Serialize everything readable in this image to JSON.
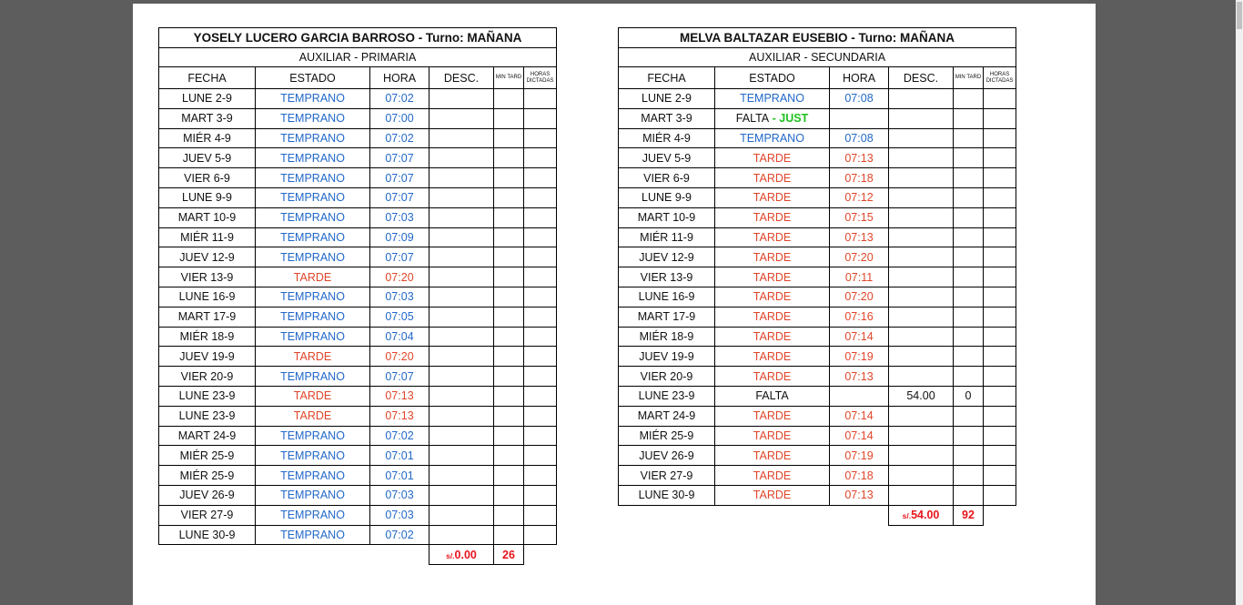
{
  "left": {
    "title": "YOSELY LUCERO GARCIA  BARROSO - Turno: MAÑANA",
    "subtitle": "AUXILIAR - PRIMARIA",
    "headers": {
      "fecha": "FECHA",
      "estado": "ESTADO",
      "hora": "HORA",
      "desc": "DESC.",
      "min": "MIN TARD",
      "horas": "HORAS DICTADAS"
    },
    "rows": [
      {
        "fecha": "LUNE 2-9",
        "estado": "TEMPRANO",
        "hora": "07:02",
        "desc": "",
        "min": ""
      },
      {
        "fecha": "MART 3-9",
        "estado": "TEMPRANO",
        "hora": "07:00",
        "desc": "",
        "min": ""
      },
      {
        "fecha": "MIÉR 4-9",
        "estado": "TEMPRANO",
        "hora": "07:02",
        "desc": "",
        "min": ""
      },
      {
        "fecha": "JUEV 5-9",
        "estado": "TEMPRANO",
        "hora": "07:07",
        "desc": "",
        "min": ""
      },
      {
        "fecha": "VIER 6-9",
        "estado": "TEMPRANO",
        "hora": "07:07",
        "desc": "",
        "min": ""
      },
      {
        "fecha": "LUNE 9-9",
        "estado": "TEMPRANO",
        "hora": "07:07",
        "desc": "",
        "min": ""
      },
      {
        "fecha": "MART 10-9",
        "estado": "TEMPRANO",
        "hora": "07:03",
        "desc": "",
        "min": ""
      },
      {
        "fecha": "MIÉR 11-9",
        "estado": "TEMPRANO",
        "hora": "07:09",
        "desc": "",
        "min": ""
      },
      {
        "fecha": "JUEV 12-9",
        "estado": "TEMPRANO",
        "hora": "07:07",
        "desc": "",
        "min": ""
      },
      {
        "fecha": "VIER 13-9",
        "estado": "TARDE",
        "hora": "07:20",
        "desc": "",
        "min": ""
      },
      {
        "fecha": "LUNE 16-9",
        "estado": "TEMPRANO",
        "hora": "07:03",
        "desc": "",
        "min": ""
      },
      {
        "fecha": "MART 17-9",
        "estado": "TEMPRANO",
        "hora": "07:05",
        "desc": "",
        "min": ""
      },
      {
        "fecha": "MIÉR 18-9",
        "estado": "TEMPRANO",
        "hora": "07:04",
        "desc": "",
        "min": ""
      },
      {
        "fecha": "JUEV 19-9",
        "estado": "TARDE",
        "hora": "07:20",
        "desc": "",
        "min": ""
      },
      {
        "fecha": "VIER 20-9",
        "estado": "TEMPRANO",
        "hora": "07:07",
        "desc": "",
        "min": ""
      },
      {
        "fecha": "LUNE 23-9",
        "estado": "TARDE",
        "hora": "07:13",
        "desc": "",
        "min": ""
      },
      {
        "fecha": "LUNE 23-9",
        "estado": "TARDE",
        "hora": "07:13",
        "desc": "",
        "min": ""
      },
      {
        "fecha": "MART 24-9",
        "estado": "TEMPRANO",
        "hora": "07:02",
        "desc": "",
        "min": ""
      },
      {
        "fecha": "MIÉR 25-9",
        "estado": "TEMPRANO",
        "hora": "07:01",
        "desc": "",
        "min": ""
      },
      {
        "fecha": "MIÉR 25-9",
        "estado": "TEMPRANO",
        "hora": "07:01",
        "desc": "",
        "min": ""
      },
      {
        "fecha": "JUEV 26-9",
        "estado": "TEMPRANO",
        "hora": "07:03",
        "desc": "",
        "min": ""
      },
      {
        "fecha": "VIER 27-9",
        "estado": "TEMPRANO",
        "hora": "07:03",
        "desc": "",
        "min": ""
      },
      {
        "fecha": "LUNE 30-9",
        "estado": "TEMPRANO",
        "hora": "07:02",
        "desc": "",
        "min": ""
      }
    ],
    "total": {
      "currency": "s/.",
      "amount": "0.00",
      "minutes": "26"
    }
  },
  "right": {
    "title": "MELVA BALTAZAR EUSEBIO - Turno: MAÑANA",
    "subtitle": "AUXILIAR - SECUNDARIA",
    "headers": {
      "fecha": "FECHA",
      "estado": "ESTADO",
      "hora": "HORA",
      "desc": "DESC.",
      "min": "MIN TARD",
      "horas": "HORAS DICTADAS"
    },
    "rows": [
      {
        "fecha": "LUNE 2-9",
        "estado": "TEMPRANO",
        "hora": "07:08",
        "desc": "",
        "min": ""
      },
      {
        "fecha": "MART 3-9",
        "estado": "FALTA",
        "extra": " - JUST",
        "hora": "",
        "desc": "",
        "min": ""
      },
      {
        "fecha": "MIÉR 4-9",
        "estado": "TEMPRANO",
        "hora": "07:08",
        "desc": "",
        "min": ""
      },
      {
        "fecha": "JUEV 5-9",
        "estado": "TARDE",
        "hora": "07:13",
        "desc": "",
        "min": ""
      },
      {
        "fecha": "VIER 6-9",
        "estado": "TARDE",
        "hora": "07:18",
        "desc": "",
        "min": ""
      },
      {
        "fecha": "LUNE 9-9",
        "estado": "TARDE",
        "hora": "07:12",
        "desc": "",
        "min": ""
      },
      {
        "fecha": "MART 10-9",
        "estado": "TARDE",
        "hora": "07:15",
        "desc": "",
        "min": ""
      },
      {
        "fecha": "MIÉR 11-9",
        "estado": "TARDE",
        "hora": "07:13",
        "desc": "",
        "min": ""
      },
      {
        "fecha": "JUEV 12-9",
        "estado": "TARDE",
        "hora": "07:20",
        "desc": "",
        "min": ""
      },
      {
        "fecha": "VIER 13-9",
        "estado": "TARDE",
        "hora": "07:11",
        "desc": "",
        "min": ""
      },
      {
        "fecha": "LUNE 16-9",
        "estado": "TARDE",
        "hora": "07:20",
        "desc": "",
        "min": ""
      },
      {
        "fecha": "MART 17-9",
        "estado": "TARDE",
        "hora": "07:16",
        "desc": "",
        "min": ""
      },
      {
        "fecha": "MIÉR 18-9",
        "estado": "TARDE",
        "hora": "07:14",
        "desc": "",
        "min": ""
      },
      {
        "fecha": "JUEV 19-9",
        "estado": "TARDE",
        "hora": "07:19",
        "desc": "",
        "min": ""
      },
      {
        "fecha": "VIER 20-9",
        "estado": "TARDE",
        "hora": "07:13",
        "desc": "",
        "min": ""
      },
      {
        "fecha": "LUNE 23-9",
        "estado": "FALTA",
        "hora": "",
        "desc": "54.00",
        "min": "0"
      },
      {
        "fecha": "MART 24-9",
        "estado": "TARDE",
        "hora": "07:14",
        "desc": "",
        "min": ""
      },
      {
        "fecha": "MIÉR 25-9",
        "estado": "TARDE",
        "hora": "07:14",
        "desc": "",
        "min": ""
      },
      {
        "fecha": "JUEV 26-9",
        "estado": "TARDE",
        "hora": "07:19",
        "desc": "",
        "min": ""
      },
      {
        "fecha": "VIER 27-9",
        "estado": "TARDE",
        "hora": "07:18",
        "desc": "",
        "min": ""
      },
      {
        "fecha": "LUNE 30-9",
        "estado": "TARDE",
        "hora": "07:13",
        "desc": "",
        "min": ""
      }
    ],
    "total": {
      "currency": "s/.",
      "amount": "54.00",
      "minutes": "92"
    }
  },
  "colors": {
    "temprano": "#2268c9",
    "tarde": "#e0452a",
    "just": "#1ec21e",
    "total": "#e8141c"
  }
}
